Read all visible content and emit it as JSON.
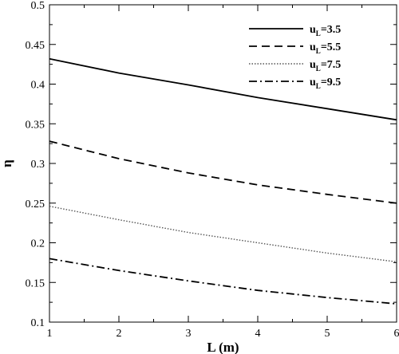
{
  "chart_data": {
    "type": "line",
    "xlabel": "L (m)",
    "ylabel": "η",
    "xlim": [
      1,
      6
    ],
    "ylim": [
      0.1,
      0.5
    ],
    "x_ticks": [
      "1",
      "2",
      "3",
      "4",
      "5",
      "6"
    ],
    "y_ticks": [
      "0.1",
      "0.15",
      "0.2",
      "0.25",
      "0.3",
      "0.35",
      "0.4",
      "0.45",
      "0.5"
    ],
    "grid": false,
    "legend_position": "top-right",
    "x": [
      1,
      2,
      3,
      4,
      5,
      6
    ],
    "series": [
      {
        "name": "uL=3.5",
        "label_main": "u",
        "label_sub": "L",
        "label_value": "=3.5",
        "dash": "solid",
        "values": [
          0.432,
          0.414,
          0.399,
          0.383,
          0.369,
          0.355
        ]
      },
      {
        "name": "uL=5.5",
        "label_main": "u",
        "label_sub": "L",
        "label_value": "=5.5",
        "dash": "dashed",
        "values": [
          0.328,
          0.306,
          0.288,
          0.273,
          0.261,
          0.25
        ]
      },
      {
        "name": "uL=7.5",
        "label_main": "u",
        "label_sub": "L",
        "label_value": "=7.5",
        "dash": "dotted",
        "values": [
          0.246,
          0.229,
          0.213,
          0.2,
          0.187,
          0.176
        ]
      },
      {
        "name": "uL=9.5",
        "label_main": "u",
        "label_sub": "L",
        "label_value": "=9.5",
        "dash": "dashdot",
        "values": [
          0.18,
          0.165,
          0.152,
          0.14,
          0.131,
          0.123
        ]
      }
    ]
  }
}
